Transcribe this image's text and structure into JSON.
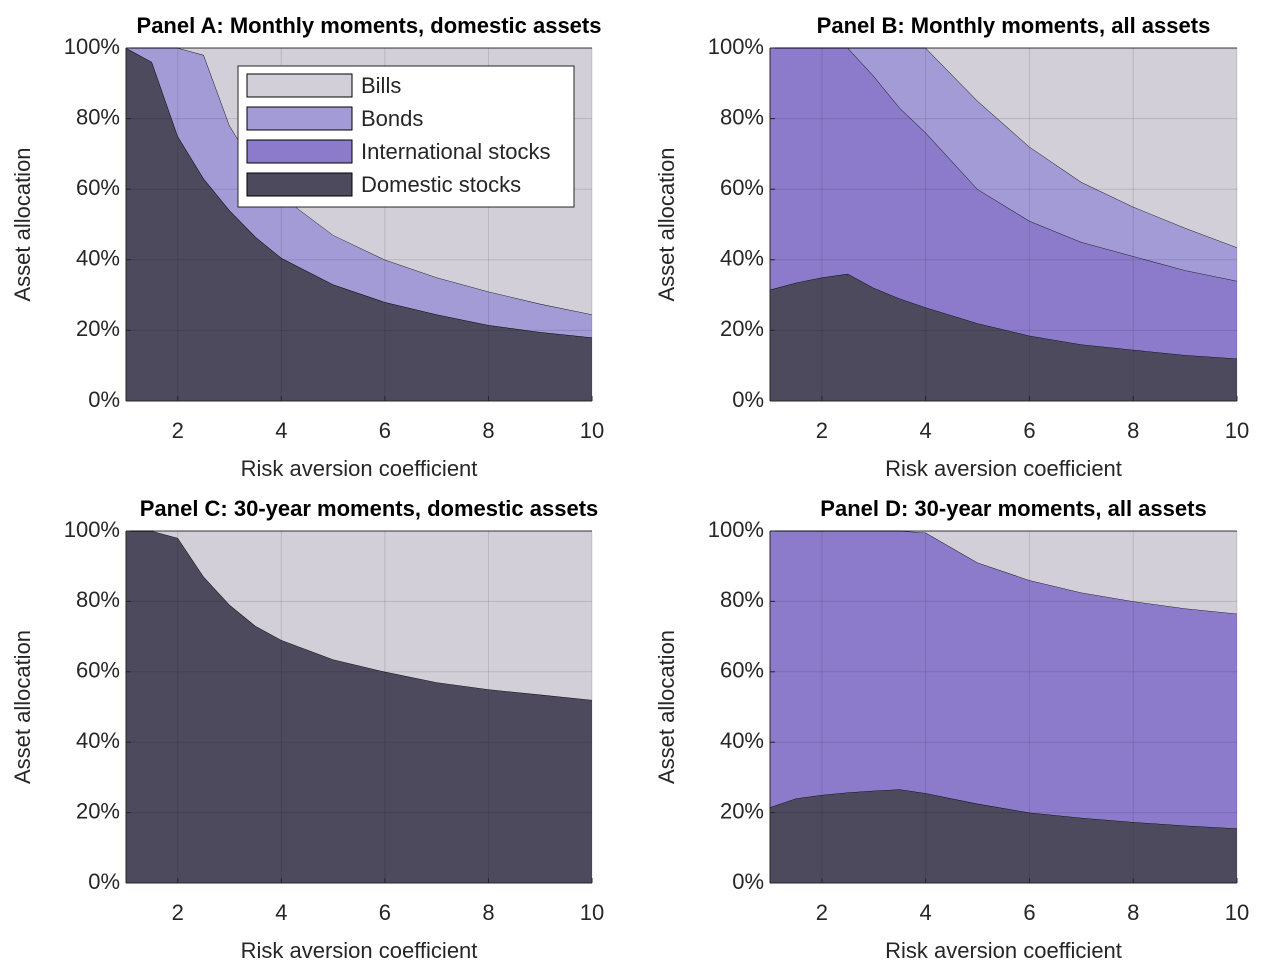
{
  "chart_data": [
    {
      "type": "area",
      "stacked": true,
      "title": "Panel A: Monthly moments, domestic assets",
      "xlabel": "Risk aversion coefficient",
      "ylabel": "Asset allocation",
      "x": [
        1,
        1.5,
        2,
        2.5,
        3,
        3.5,
        4,
        5,
        6,
        7,
        8,
        9,
        10
      ],
      "series": [
        {
          "name": "Domestic stocks",
          "color": "#4e4a5e",
          "values": [
            100,
            96,
            75,
            63,
            54,
            46.5,
            40.5,
            33,
            28,
            24.5,
            21.5,
            19.5,
            18
          ]
        },
        {
          "name": "International stocks",
          "color": "#8c7bcb",
          "values": [
            0,
            0,
            0,
            0,
            0,
            0,
            0,
            0,
            0,
            0,
            0,
            0,
            0
          ]
        },
        {
          "name": "Bonds",
          "color": "#a39bd6",
          "values": [
            0,
            4,
            25,
            35,
            24,
            19.5,
            17.5,
            14,
            12,
            10.5,
            9.5,
            8,
            6.5
          ]
        },
        {
          "name": "Bills",
          "color": "#d2cfd8",
          "values": [
            0,
            0,
            0,
            2,
            22,
            34,
            42,
            53,
            60,
            65,
            69,
            72.5,
            75.5
          ]
        }
      ],
      "xlim": [
        1,
        10
      ],
      "xticks": [
        2,
        4,
        6,
        8,
        10
      ],
      "ylim": [
        0,
        100
      ],
      "yticks": [
        {
          "value": 0,
          "label": "0%"
        },
        {
          "value": 20,
          "label": "20%"
        },
        {
          "value": 40,
          "label": "40%"
        },
        {
          "value": 60,
          "label": "60%"
        },
        {
          "value": 80,
          "label": "80%"
        },
        {
          "value": 100,
          "label": "100%"
        }
      ],
      "grid": true,
      "legend": "upper right"
    },
    {
      "type": "area",
      "stacked": true,
      "title": "Panel B: Monthly moments, all assets",
      "xlabel": "Risk aversion coefficient",
      "ylabel": "Asset allocation",
      "x": [
        1,
        1.5,
        2,
        2.5,
        3,
        3.5,
        4,
        5,
        6,
        7,
        8,
        9,
        10
      ],
      "series": [
        {
          "color": "#4e4a5e",
          "values": [
            31.5,
            33.5,
            35,
            36,
            32,
            29,
            26.5,
            22,
            18.5,
            16,
            14.5,
            13,
            12
          ]
        },
        {
          "color": "#8c7bcb",
          "values": [
            68.5,
            66.5,
            65,
            64,
            60,
            54,
            49.5,
            38,
            32.5,
            29,
            26.5,
            24,
            22
          ]
        },
        {
          "color": "#a39bd6",
          "values": [
            0,
            0,
            0,
            0,
            8,
            17,
            24,
            25,
            21,
            17,
            14,
            12,
            9.5
          ]
        },
        {
          "color": "#d2cfd8",
          "values": [
            0,
            0,
            0,
            0,
            0,
            0,
            0,
            15,
            28,
            38,
            45,
            51,
            56.5
          ]
        }
      ],
      "xlim": [
        1,
        10
      ],
      "xticks": [
        2,
        4,
        6,
        8,
        10
      ],
      "ylim": [
        0,
        100
      ],
      "yticks": [
        {
          "value": 0,
          "label": "0%"
        },
        {
          "value": 20,
          "label": "20%"
        },
        {
          "value": 40,
          "label": "40%"
        },
        {
          "value": 60,
          "label": "60%"
        },
        {
          "value": 80,
          "label": "80%"
        },
        {
          "value": 100,
          "label": "100%"
        }
      ],
      "grid": true
    },
    {
      "type": "area",
      "stacked": true,
      "title": "Panel C: 30-year moments, domestic assets",
      "xlabel": "Risk aversion coefficient",
      "ylabel": "Asset allocation",
      "x": [
        1,
        1.5,
        2,
        2.5,
        3,
        3.5,
        4,
        5,
        6,
        7,
        8,
        9,
        10
      ],
      "series": [
        {
          "color": "#4e4a5e",
          "values": [
            100,
            100,
            98,
            87,
            79,
            73,
            69,
            63.5,
            60,
            57,
            55,
            53.5,
            52
          ]
        },
        {
          "color": "#d2cfd8",
          "values": [
            0,
            0,
            2,
            13,
            21,
            27,
            31,
            36.5,
            40,
            43,
            45,
            46.5,
            48
          ]
        }
      ],
      "xlim": [
        1,
        10
      ],
      "xticks": [
        2,
        4,
        6,
        8,
        10
      ],
      "ylim": [
        0,
        100
      ],
      "yticks": [
        {
          "value": 0,
          "label": "0%"
        },
        {
          "value": 20,
          "label": "20%"
        },
        {
          "value": 40,
          "label": "40%"
        },
        {
          "value": 60,
          "label": "60%"
        },
        {
          "value": 80,
          "label": "80%"
        },
        {
          "value": 100,
          "label": "100%"
        }
      ],
      "grid": true
    },
    {
      "type": "area",
      "stacked": true,
      "title": "Panel D: 30-year moments, all assets",
      "xlabel": "Risk aversion coefficient",
      "ylabel": "Asset allocation",
      "x": [
        1,
        1.5,
        2,
        2.5,
        3,
        3.5,
        4,
        5,
        6,
        7,
        8,
        9,
        10
      ],
      "series": [
        {
          "color": "#4e4a5e",
          "values": [
            21.5,
            24,
            25,
            25.7,
            26.2,
            26.6,
            25.5,
            22.5,
            20,
            18.5,
            17.3,
            16.3,
            15.5
          ]
        },
        {
          "color": "#8c7bcb",
          "values": [
            78.5,
            76,
            75,
            74.3,
            73.8,
            73.4,
            74,
            68.5,
            66,
            64,
            62.7,
            61.7,
            61
          ]
        },
        {
          "color": "#d2cfd8",
          "values": [
            0,
            0,
            0,
            0,
            0,
            0,
            0.5,
            9,
            14,
            17.5,
            20,
            22,
            23.5
          ]
        }
      ],
      "xlim": [
        1,
        10
      ],
      "xticks": [
        2,
        4,
        6,
        8,
        10
      ],
      "ylim": [
        0,
        100
      ],
      "yticks": [
        {
          "value": 0,
          "label": "0%"
        },
        {
          "value": 20,
          "label": "20%"
        },
        {
          "value": 40,
          "label": "40%"
        },
        {
          "value": 60,
          "label": "60%"
        },
        {
          "value": 80,
          "label": "80%"
        },
        {
          "value": 100,
          "label": "100%"
        }
      ],
      "grid": true
    }
  ]
}
